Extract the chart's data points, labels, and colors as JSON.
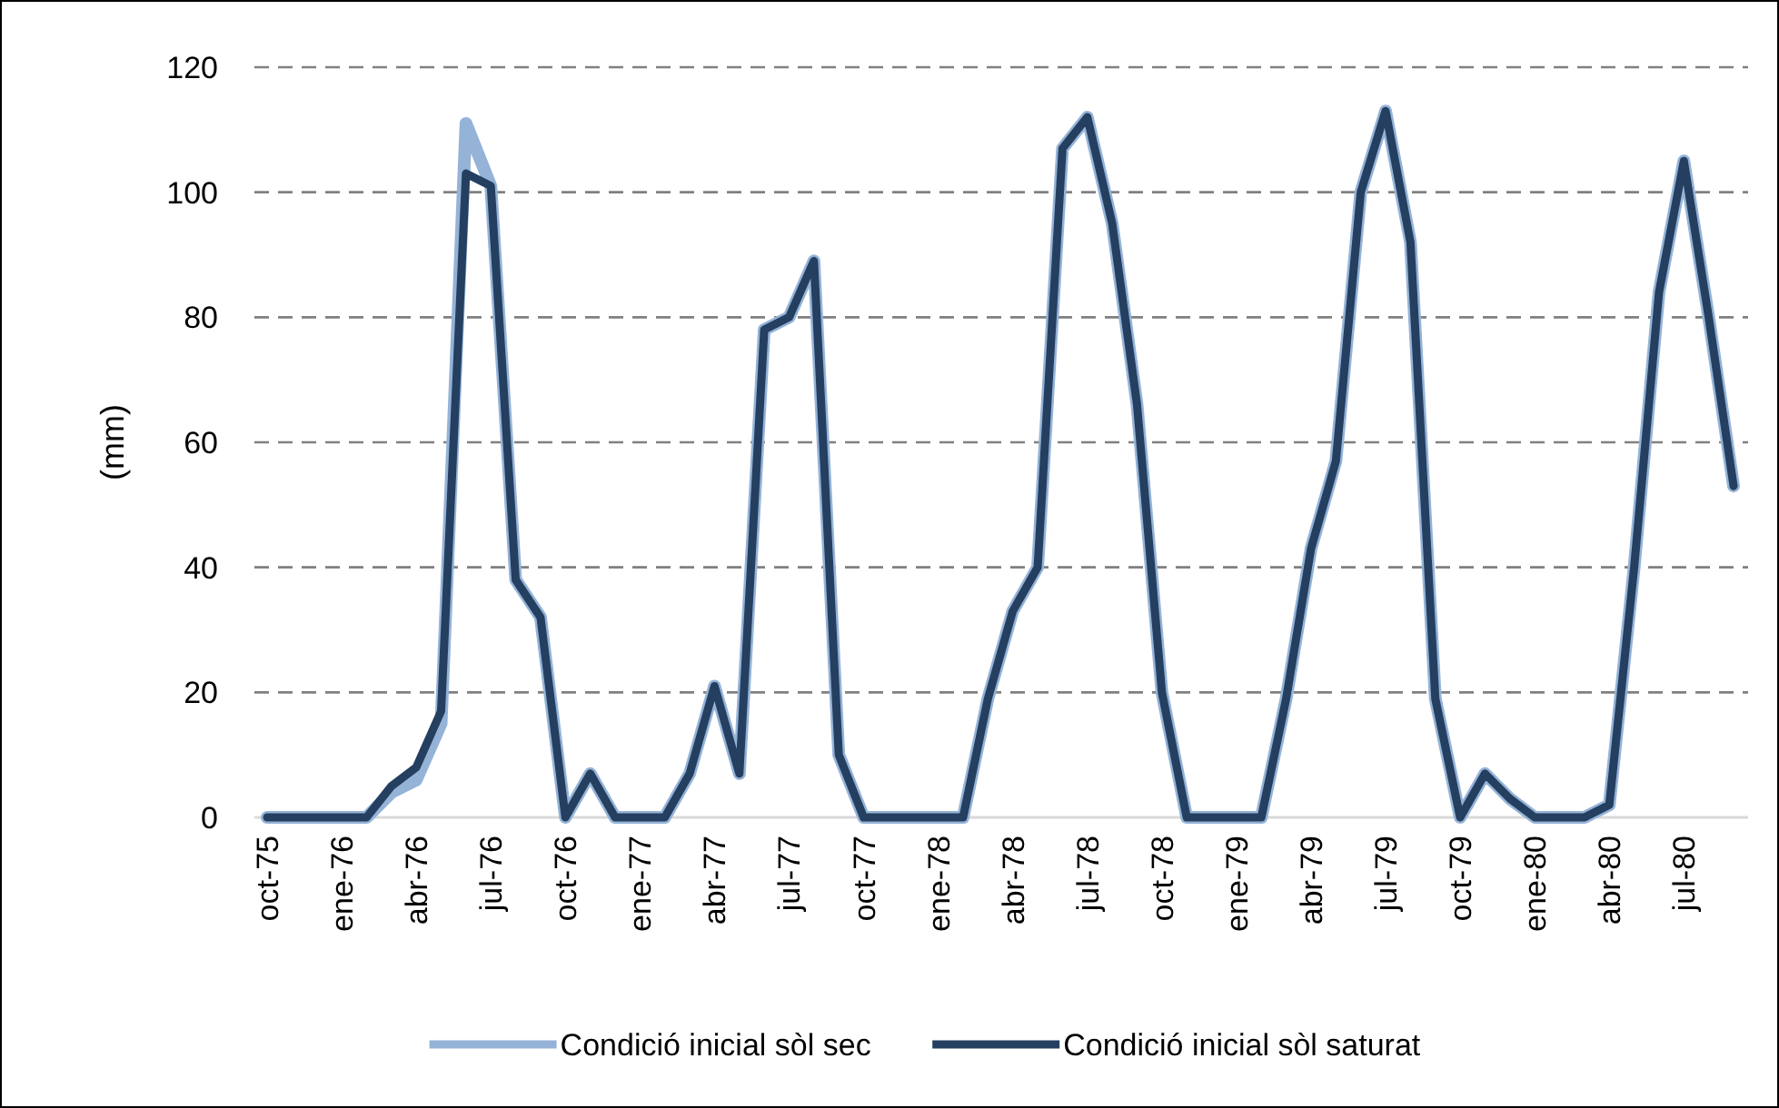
{
  "chart_data": {
    "type": "line",
    "ylabel": "(mm)",
    "categories": [
      "oct-75",
      null,
      null,
      "ene-76",
      null,
      null,
      "abr-76",
      null,
      null,
      "jul-76",
      null,
      null,
      "oct-76",
      null,
      null,
      "ene-77",
      null,
      null,
      "abr-77",
      null,
      null,
      "jul-77",
      null,
      null,
      "oct-77",
      null,
      null,
      "ene-78",
      null,
      null,
      "abr-78",
      null,
      null,
      "jul-78",
      null,
      null,
      "oct-78",
      null,
      null,
      "ene-79",
      null,
      null,
      "abr-79",
      null,
      null,
      "jul-79",
      null,
      null,
      "oct-79",
      null,
      null,
      "ene-80",
      null,
      null,
      "abr-80",
      null,
      null,
      "jul-80",
      null,
      null
    ],
    "series": [
      {
        "name": "Condició inicial sòl sec",
        "color": "#95b3d7",
        "values": [
          0,
          0,
          0,
          0,
          0,
          4,
          6,
          15,
          111,
          101,
          38,
          32,
          0,
          7,
          0,
          0,
          0,
          7,
          21,
          7,
          78,
          80,
          89,
          10,
          0,
          0,
          0,
          0,
          0,
          19,
          33,
          40,
          107,
          112,
          95,
          66,
          20,
          0,
          0,
          0,
          0,
          19,
          43,
          57,
          100,
          113,
          92,
          19,
          0,
          7,
          3,
          0,
          0,
          0,
          2,
          40,
          84,
          105,
          80,
          53
        ]
      },
      {
        "name": "Condició inicial sòl saturat",
        "color": "#243f60",
        "values": [
          0,
          0,
          0,
          0,
          0,
          5,
          8,
          17,
          103,
          101,
          38,
          32,
          0,
          7,
          0,
          0,
          0,
          7,
          21,
          7,
          78,
          80,
          89,
          10,
          0,
          0,
          0,
          0,
          0,
          19,
          33,
          40,
          107,
          112,
          95,
          66,
          20,
          0,
          0,
          0,
          0,
          19,
          43,
          57,
          100,
          113,
          92,
          19,
          0,
          7,
          3,
          0,
          0,
          0,
          2,
          40,
          84,
          105,
          80,
          53
        ]
      }
    ],
    "ylim": [
      0,
      120
    ],
    "yticks": [
      0,
      20,
      40,
      60,
      80,
      100,
      120
    ],
    "grid": "y",
    "legend": "bottom",
    "line_style": "solid",
    "marker": "none"
  }
}
